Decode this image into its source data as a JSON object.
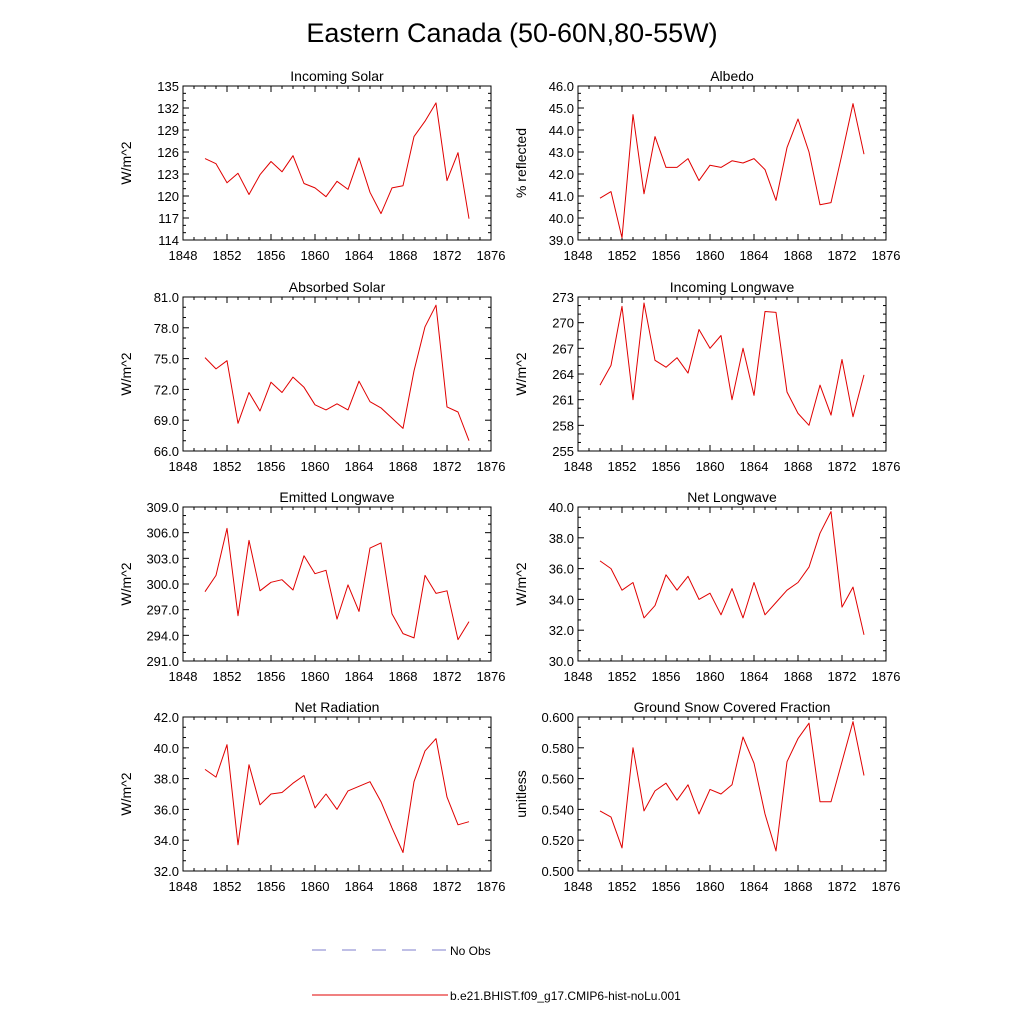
{
  "title": "Eastern Canada (50-60N,80-55W)",
  "legend": [
    {
      "label": "No Obs",
      "color": "#7f7fcc",
      "dash": true
    },
    {
      "label": "b.e21.BHIST.f09_g17.CMIP6-hist-noLu.001",
      "color": "#e00000",
      "dash": false
    }
  ],
  "chart_data": [
    {
      "type": "line",
      "title": "Incoming Solar",
      "ylabel": "W/m^2",
      "xlim": [
        1848,
        1876
      ],
      "ylim": [
        114,
        135
      ],
      "xticks": [
        1848,
        1852,
        1856,
        1860,
        1864,
        1868,
        1872,
        1876
      ],
      "yticks": [
        114,
        117,
        120,
        123,
        126,
        129,
        132,
        135
      ],
      "ytick_labels": [
        "114",
        "117",
        "120",
        "123",
        "126",
        "129",
        "132",
        "135"
      ],
      "x": [
        1850,
        1851,
        1852,
        1853,
        1854,
        1855,
        1856,
        1857,
        1858,
        1859,
        1860,
        1861,
        1862,
        1863,
        1864,
        1865,
        1866,
        1867,
        1868,
        1869,
        1870,
        1871,
        1872,
        1873,
        1874
      ],
      "series": [
        {
          "name": "b.e21.BHIST.f09_g17.CMIP6-hist-noLu.001",
          "color": "#e00000",
          "values": [
            125.1,
            124.4,
            121.8,
            123.1,
            120.2,
            122.9,
            124.7,
            123.3,
            125.5,
            121.7,
            121.1,
            119.9,
            122.0,
            120.9,
            125.2,
            120.5,
            117.6,
            121.1,
            121.4,
            128.1,
            130.2,
            132.7,
            122.1,
            125.9,
            116.9
          ]
        }
      ]
    },
    {
      "type": "line",
      "title": "Albedo",
      "ylabel": "% reflected",
      "xlim": [
        1848,
        1876
      ],
      "ylim": [
        39,
        46
      ],
      "xticks": [
        1848,
        1852,
        1856,
        1860,
        1864,
        1868,
        1872,
        1876
      ],
      "yticks": [
        39,
        40,
        41,
        42,
        43,
        44,
        45,
        46
      ],
      "ytick_labels": [
        "39.0",
        "40.0",
        "41.0",
        "42.0",
        "43.0",
        "44.0",
        "45.0",
        "46.0"
      ],
      "x": [
        1850,
        1851,
        1852,
        1853,
        1854,
        1855,
        1856,
        1857,
        1858,
        1859,
        1860,
        1861,
        1862,
        1863,
        1864,
        1865,
        1866,
        1867,
        1868,
        1869,
        1870,
        1871,
        1872,
        1873,
        1874
      ],
      "series": [
        {
          "name": "b.e21.BHIST.f09_g17.CMIP6-hist-noLu.001",
          "color": "#e00000",
          "values": [
            40.9,
            41.2,
            39.1,
            44.7,
            41.1,
            43.7,
            42.3,
            42.3,
            42.7,
            41.7,
            42.4,
            42.3,
            42.6,
            42.5,
            42.7,
            42.2,
            40.8,
            43.2,
            44.5,
            43.0,
            40.6,
            40.7,
            42.9,
            45.2,
            42.9
          ]
        }
      ]
    },
    {
      "type": "line",
      "title": "Absorbed Solar",
      "ylabel": "W/m^2",
      "xlim": [
        1848,
        1876
      ],
      "ylim": [
        66,
        81
      ],
      "xticks": [
        1848,
        1852,
        1856,
        1860,
        1864,
        1868,
        1872,
        1876
      ],
      "yticks": [
        66,
        69,
        72,
        75,
        78,
        81
      ],
      "ytick_labels": [
        "66.0",
        "69.0",
        "72.0",
        "75.0",
        "78.0",
        "81.0"
      ],
      "x": [
        1850,
        1851,
        1852,
        1853,
        1854,
        1855,
        1856,
        1857,
        1858,
        1859,
        1860,
        1861,
        1862,
        1863,
        1864,
        1865,
        1866,
        1867,
        1868,
        1869,
        1870,
        1871,
        1872,
        1873,
        1874
      ],
      "series": [
        {
          "name": "b.e21.BHIST.f09_g17.CMIP6-hist-noLu.001",
          "color": "#e00000",
          "values": [
            75.1,
            74.0,
            74.8,
            68.7,
            71.7,
            69.9,
            72.7,
            71.7,
            73.2,
            72.2,
            70.5,
            70.0,
            70.6,
            70.0,
            72.8,
            70.8,
            70.2,
            69.2,
            68.2,
            73.8,
            78.1,
            80.2,
            70.3,
            69.8,
            67.0
          ]
        }
      ]
    },
    {
      "type": "line",
      "title": "Incoming Longwave",
      "ylabel": "W/m^2",
      "xlim": [
        1848,
        1876
      ],
      "ylim": [
        255,
        273
      ],
      "xticks": [
        1848,
        1852,
        1856,
        1860,
        1864,
        1868,
        1872,
        1876
      ],
      "yticks": [
        255,
        258,
        261,
        264,
        267,
        270,
        273
      ],
      "ytick_labels": [
        "255",
        "258",
        "261",
        "264",
        "267",
        "270",
        "273"
      ],
      "x": [
        1850,
        1851,
        1852,
        1853,
        1854,
        1855,
        1856,
        1857,
        1858,
        1859,
        1860,
        1861,
        1862,
        1863,
        1864,
        1865,
        1866,
        1867,
        1868,
        1869,
        1870,
        1871,
        1872,
        1873,
        1874
      ],
      "series": [
        {
          "name": "b.e21.BHIST.f09_g17.CMIP6-hist-noLu.001",
          "color": "#e00000",
          "values": [
            262.7,
            265.0,
            271.9,
            261.0,
            272.3,
            265.6,
            264.8,
            265.9,
            264.1,
            269.2,
            267.0,
            268.5,
            261.0,
            267.0,
            261.5,
            271.3,
            271.2,
            261.9,
            259.4,
            258.0,
            262.7,
            259.2,
            265.7,
            259.0,
            263.9
          ]
        }
      ]
    },
    {
      "type": "line",
      "title": "Emitted Longwave",
      "ylabel": "W/m^2",
      "xlim": [
        1848,
        1876
      ],
      "ylim": [
        291,
        309
      ],
      "xticks": [
        1848,
        1852,
        1856,
        1860,
        1864,
        1868,
        1872,
        1876
      ],
      "yticks": [
        291,
        294,
        297,
        300,
        303,
        306,
        309
      ],
      "ytick_labels": [
        "291.0",
        "294.0",
        "297.0",
        "300.0",
        "303.0",
        "306.0",
        "309.0"
      ],
      "x": [
        1850,
        1851,
        1852,
        1853,
        1854,
        1855,
        1856,
        1857,
        1858,
        1859,
        1860,
        1861,
        1862,
        1863,
        1864,
        1865,
        1866,
        1867,
        1868,
        1869,
        1870,
        1871,
        1872,
        1873,
        1874
      ],
      "series": [
        {
          "name": "b.e21.BHIST.f09_g17.CMIP6-hist-noLu.001",
          "color": "#e00000",
          "values": [
            299.1,
            301.0,
            306.5,
            296.3,
            305.1,
            299.2,
            300.2,
            300.5,
            299.3,
            303.3,
            301.2,
            301.6,
            295.9,
            299.9,
            296.8,
            304.2,
            304.8,
            296.5,
            294.2,
            293.7,
            301.0,
            298.9,
            299.2,
            293.5,
            295.6
          ]
        }
      ]
    },
    {
      "type": "line",
      "title": "Net Longwave",
      "ylabel": "W/m^2",
      "xlim": [
        1848,
        1876
      ],
      "ylim": [
        30,
        40
      ],
      "xticks": [
        1848,
        1852,
        1856,
        1860,
        1864,
        1868,
        1872,
        1876
      ],
      "yticks": [
        30,
        32,
        34,
        36,
        38,
        40
      ],
      "ytick_labels": [
        "30.0",
        "32.0",
        "34.0",
        "36.0",
        "38.0",
        "40.0"
      ],
      "x": [
        1850,
        1851,
        1852,
        1853,
        1854,
        1855,
        1856,
        1857,
        1858,
        1859,
        1860,
        1861,
        1862,
        1863,
        1864,
        1865,
        1866,
        1867,
        1868,
        1869,
        1870,
        1871,
        1872,
        1873,
        1874
      ],
      "series": [
        {
          "name": "b.e21.BHIST.f09_g17.CMIP6-hist-noLu.001",
          "color": "#e00000",
          "values": [
            36.5,
            36.0,
            34.6,
            35.1,
            32.8,
            33.6,
            35.6,
            34.6,
            35.5,
            34.0,
            34.4,
            33.0,
            34.7,
            32.8,
            35.1,
            33.0,
            33.8,
            34.6,
            35.1,
            36.1,
            38.3,
            39.7,
            33.5,
            34.8,
            31.7
          ]
        }
      ]
    },
    {
      "type": "line",
      "title": "Net Radiation",
      "ylabel": "W/m^2",
      "xlim": [
        1848,
        1876
      ],
      "ylim": [
        32,
        42
      ],
      "xticks": [
        1848,
        1852,
        1856,
        1860,
        1864,
        1868,
        1872,
        1876
      ],
      "yticks": [
        32,
        34,
        36,
        38,
        40,
        42
      ],
      "ytick_labels": [
        "32.0",
        "34.0",
        "36.0",
        "38.0",
        "40.0",
        "42.0"
      ],
      "x": [
        1850,
        1851,
        1852,
        1853,
        1854,
        1855,
        1856,
        1857,
        1858,
        1859,
        1860,
        1861,
        1862,
        1863,
        1864,
        1865,
        1866,
        1867,
        1868,
        1869,
        1870,
        1871,
        1872,
        1873,
        1874
      ],
      "series": [
        {
          "name": "b.e21.BHIST.f09_g17.CMIP6-hist-noLu.001",
          "color": "#e00000",
          "values": [
            38.6,
            38.1,
            40.2,
            33.7,
            38.9,
            36.3,
            37.0,
            37.1,
            37.7,
            38.2,
            36.1,
            37.0,
            36.0,
            37.2,
            37.5,
            37.8,
            36.5,
            34.8,
            33.2,
            37.8,
            39.8,
            40.6,
            36.8,
            35.0,
            35.2
          ]
        }
      ]
    },
    {
      "type": "line",
      "title": "Ground Snow Covered Fraction",
      "ylabel": "unitless",
      "xlim": [
        1848,
        1876
      ],
      "ylim": [
        0.5,
        0.6
      ],
      "xticks": [
        1848,
        1852,
        1856,
        1860,
        1864,
        1868,
        1872,
        1876
      ],
      "yticks": [
        0.5,
        0.52,
        0.54,
        0.56,
        0.58,
        0.6
      ],
      "ytick_labels": [
        "0.500",
        "0.520",
        "0.540",
        "0.560",
        "0.580",
        "0.600"
      ],
      "x": [
        1850,
        1851,
        1852,
        1853,
        1854,
        1855,
        1856,
        1857,
        1858,
        1859,
        1860,
        1861,
        1862,
        1863,
        1864,
        1865,
        1866,
        1867,
        1868,
        1869,
        1870,
        1871,
        1872,
        1873,
        1874
      ],
      "series": [
        {
          "name": "b.e21.BHIST.f09_g17.CMIP6-hist-noLu.001",
          "color": "#e00000",
          "values": [
            0.539,
            0.535,
            0.515,
            0.58,
            0.539,
            0.552,
            0.557,
            0.546,
            0.556,
            0.537,
            0.553,
            0.55,
            0.556,
            0.587,
            0.57,
            0.537,
            0.513,
            0.571,
            0.586,
            0.596,
            0.545,
            0.545,
            0.571,
            0.597,
            0.562
          ]
        }
      ]
    }
  ]
}
